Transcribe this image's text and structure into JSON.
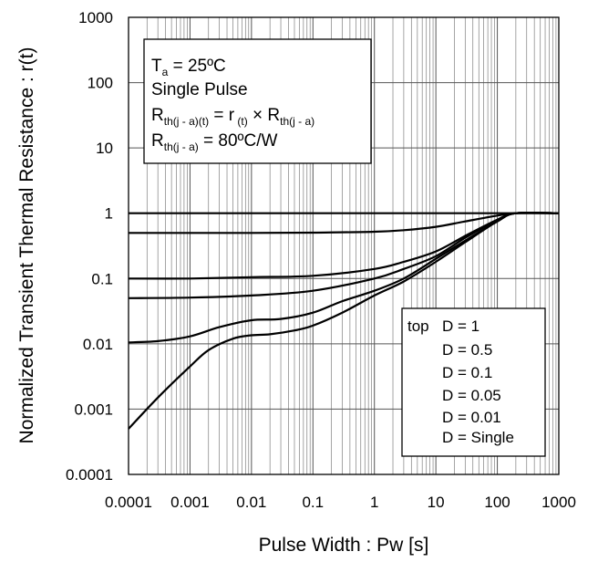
{
  "chart_data": {
    "type": "line",
    "x_scale": "log",
    "y_scale": "log",
    "xlim": [
      0.0001,
      1000
    ],
    "ylim": [
      0.0001,
      1000
    ],
    "grid": true,
    "xlabel": "Pulse Width : Pw [s]",
    "ylabel": "Normalized Transient Thermal Resistance : r(t)",
    "x_ticks": [
      "0.0001",
      "0.001",
      "0.01",
      "0.1",
      "1",
      "10",
      "100",
      "1000"
    ],
    "y_ticks": [
      "1000",
      "100",
      "10",
      "1",
      "0.1",
      "0.01",
      "0.001",
      "0.0001"
    ],
    "conditions": {
      "ta_var": "T",
      "ta_sub": "a",
      "ta_value": " = 25ºC",
      "pulse": "Single Pulse",
      "rth_var": "R",
      "rth_sub": "th(j - a)(t)",
      "rth_eq": " = r",
      "rt_sub": " (t)",
      "rth_times": " × R",
      "rth_sub2": "th(j - a)",
      "rja_var": "R",
      "rja_sub": "th(j - a)",
      "rja_value": " = 80ºC/W"
    },
    "legend": {
      "prefix": "top",
      "entries": [
        "D = 1",
        "D = 0.5",
        "D = 0.1",
        "D = 0.05",
        "D = 0.01",
        "D = Single"
      ]
    },
    "series": [
      {
        "name": "D = 1",
        "x": [
          0.0001,
          0.01,
          1,
          100,
          1000
        ],
        "y": [
          1,
          1,
          1,
          1,
          1
        ]
      },
      {
        "name": "D = 0.5",
        "x": [
          0.0001,
          0.001,
          0.01,
          0.1,
          1,
          3,
          10,
          30,
          100,
          200,
          1000
        ],
        "y": [
          0.5,
          0.5,
          0.5,
          0.505,
          0.52,
          0.55,
          0.62,
          0.75,
          0.92,
          1,
          1
        ]
      },
      {
        "name": "D = 0.1",
        "x": [
          0.0001,
          0.001,
          0.01,
          0.1,
          1,
          3,
          10,
          30,
          100,
          200,
          1000
        ],
        "y": [
          0.1,
          0.1,
          0.105,
          0.11,
          0.14,
          0.18,
          0.26,
          0.45,
          0.8,
          1,
          1
        ]
      },
      {
        "name": "D = 0.05",
        "x": [
          0.0001,
          0.001,
          0.01,
          0.1,
          1,
          3,
          10,
          30,
          100,
          200,
          1000
        ],
        "y": [
          0.05,
          0.051,
          0.055,
          0.065,
          0.1,
          0.14,
          0.22,
          0.42,
          0.78,
          1,
          1
        ]
      },
      {
        "name": "D = 0.01",
        "x": [
          0.0001,
          0.0003,
          0.001,
          0.003,
          0.01,
          0.03,
          0.1,
          0.3,
          1,
          3,
          10,
          30,
          100,
          200,
          1000
        ],
        "y": [
          0.0105,
          0.011,
          0.013,
          0.018,
          0.023,
          0.024,
          0.03,
          0.045,
          0.065,
          0.1,
          0.2,
          0.38,
          0.75,
          1,
          1
        ]
      },
      {
        "name": "D = Single",
        "x": [
          0.0001,
          0.0003,
          0.001,
          0.002,
          0.005,
          0.01,
          0.02,
          0.05,
          0.1,
          0.3,
          1,
          3,
          10,
          30,
          100,
          200,
          1000
        ],
        "y": [
          0.0005,
          0.0015,
          0.0045,
          0.008,
          0.012,
          0.0135,
          0.014,
          0.016,
          0.019,
          0.03,
          0.055,
          0.09,
          0.18,
          0.36,
          0.75,
          1,
          1
        ]
      }
    ]
  }
}
